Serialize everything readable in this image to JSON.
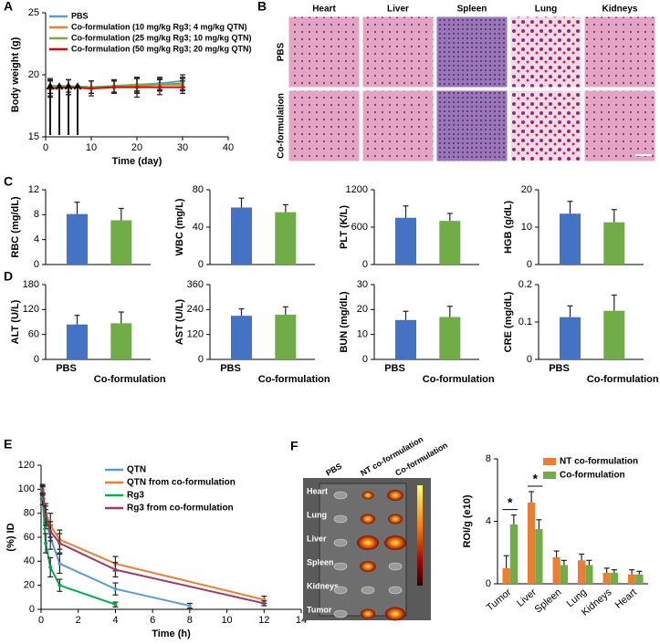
{
  "chart_data": [
    {
      "panel": "A",
      "type": "line",
      "xlabel": "Time (day)",
      "ylabel": "Body weight (g)",
      "xlim": [
        0,
        40
      ],
      "xticks": [
        0,
        10,
        20,
        30,
        40
      ],
      "ylim": [
        15,
        25
      ],
      "yticks": [
        15,
        20,
        25
      ],
      "x": [
        1,
        5,
        10,
        15,
        20,
        25,
        30
      ],
      "arrows_x": [
        1,
        3,
        5,
        7
      ],
      "series": [
        {
          "name": "PBS",
          "color": "#5b9bd5",
          "values": [
            19.0,
            19.1,
            19.0,
            19.1,
            19.2,
            19.3,
            19.5
          ],
          "errors": [
            0.5,
            0.5,
            0.5,
            0.5,
            0.5,
            0.5,
            0.5
          ]
        },
        {
          "name": "Co-formulation (10 mg/kg Rg3; 4 mg/kg QTN)",
          "color": "#ed7d31",
          "values": [
            18.9,
            19.0,
            19.0,
            19.0,
            19.1,
            19.2,
            19.2
          ],
          "errors": [
            0.6,
            0.6,
            0.5,
            0.5,
            0.6,
            0.5,
            0.5
          ]
        },
        {
          "name": "Co-formulation (25 mg/kg Rg3; 10 mg/kg QTN)",
          "color": "#70ad47",
          "values": [
            19.1,
            19.1,
            19.0,
            19.1,
            19.2,
            19.2,
            19.3
          ],
          "errors": [
            0.6,
            0.5,
            0.5,
            0.5,
            0.6,
            0.5,
            0.5
          ]
        },
        {
          "name": "Co-formulation (50 mg/kg Rg3; 20 mg/kg QTN)",
          "color": "#e00000",
          "values": [
            18.9,
            19.0,
            18.9,
            19.0,
            19.0,
            19.0,
            19.0
          ],
          "errors": [
            0.7,
            0.6,
            0.6,
            0.5,
            0.8,
            0.6,
            0.5
          ]
        }
      ]
    },
    {
      "panel": "C",
      "type": "bar",
      "ylabel": "RBC (mg/dL)",
      "ylim": [
        0,
        12
      ],
      "yticks": [
        0,
        4,
        8,
        12
      ],
      "categories": [
        null,
        null
      ],
      "values": [
        8.1,
        7.1
      ],
      "errors": [
        1.9,
        1.9
      ],
      "colors": [
        "#4472c4",
        "#70ad47"
      ]
    },
    {
      "type": "bar",
      "ylabel": "WBC (mg/L)",
      "ylim": [
        0,
        80
      ],
      "yticks": [
        0,
        40,
        80
      ],
      "categories": [
        null,
        null
      ],
      "values": [
        61,
        56
      ],
      "errors": [
        10,
        8
      ],
      "colors": [
        "#4472c4",
        "#70ad47"
      ]
    },
    {
      "type": "bar",
      "ylabel": "PLT (K/L)",
      "ylim": [
        0,
        1200
      ],
      "yticks": [
        0,
        600,
        1200
      ],
      "categories": [
        null,
        null
      ],
      "values": [
        750,
        700
      ],
      "errors": [
        190,
        120
      ],
      "colors": [
        "#4472c4",
        "#70ad47"
      ]
    },
    {
      "type": "bar",
      "ylabel": "HGB (g/dL)",
      "ylim": [
        0,
        20
      ],
      "yticks": [
        0,
        10,
        20
      ],
      "categories": [
        null,
        null
      ],
      "values": [
        13.6,
        11.3
      ],
      "errors": [
        3.3,
        3.4
      ],
      "colors": [
        "#4472c4",
        "#70ad47"
      ]
    },
    {
      "panel": "D",
      "type": "bar",
      "ylabel": "ALT (U/L)",
      "ylim": [
        0,
        180
      ],
      "yticks": [
        0,
        60,
        120,
        180
      ],
      "categories": [
        "PBS",
        "Co-formulation"
      ],
      "values": [
        84,
        87
      ],
      "errors": [
        22,
        27
      ],
      "colors": [
        "#4472c4",
        "#70ad47"
      ]
    },
    {
      "type": "bar",
      "ylabel": "AST (U/L)",
      "ylim": [
        0,
        360
      ],
      "yticks": [
        0,
        120,
        240,
        360
      ],
      "categories": [
        "PBS",
        "Co-formulation"
      ],
      "values": [
        210,
        215
      ],
      "errors": [
        33,
        38
      ],
      "colors": [
        "#4472c4",
        "#70ad47"
      ]
    },
    {
      "type": "bar",
      "ylabel": "BUN (mg/dL)",
      "ylim": [
        0,
        30
      ],
      "yticks": [
        0,
        10,
        20,
        30
      ],
      "categories": [
        "PBS",
        "Co-formulation"
      ],
      "values": [
        15.8,
        17
      ],
      "errors": [
        3.5,
        4.3
      ],
      "colors": [
        "#4472c4",
        "#70ad47"
      ]
    },
    {
      "type": "bar",
      "ylabel": "CRE (mg/dL)",
      "ylim": [
        0,
        0.2
      ],
      "yticks": [
        0,
        0.1,
        0.2
      ],
      "categories": [
        "PBS",
        "Co-formulation"
      ],
      "values": [
        0.113,
        0.13
      ],
      "errors": [
        0.03,
        0.042
      ],
      "colors": [
        "#4472c4",
        "#70ad47"
      ]
    },
    {
      "panel": "E",
      "type": "line",
      "xlabel": "Time (h)",
      "ylabel": "(%) ID",
      "xlim": [
        0,
        14
      ],
      "xticks": [
        0,
        2,
        4,
        6,
        8,
        10,
        12,
        14
      ],
      "ylim": [
        0,
        120
      ],
      "yticks": [
        0,
        20,
        40,
        60,
        80,
        100,
        120
      ],
      "series": [
        {
          "name": "QTN",
          "color": "#5b9bd5",
          "x": [
            0.083,
            0.25,
            0.5,
            1,
            4,
            8
          ],
          "values": [
            97,
            75,
            60,
            38,
            17,
            3
          ],
          "errors": [
            5,
            8,
            10,
            8,
            5,
            2
          ]
        },
        {
          "name": "QTN from co-formulation",
          "color": "#ed7d31",
          "x": [
            0.083,
            0.25,
            0.5,
            1,
            4,
            12
          ],
          "values": [
            100,
            80,
            70,
            58,
            38,
            8
          ],
          "errors": [
            4,
            8,
            10,
            8,
            6,
            3
          ]
        },
        {
          "name": "Rg3",
          "color": "#00b050",
          "x": [
            0.083,
            0.25,
            0.5,
            1,
            4
          ],
          "values": [
            92,
            55,
            35,
            20,
            4
          ],
          "errors": [
            5,
            8,
            8,
            5,
            2
          ]
        },
        {
          "name": "Rg3 from co-formulation",
          "color": "#9e3a6a",
          "x": [
            0.083,
            0.25,
            0.5,
            1,
            4,
            12
          ],
          "values": [
            99,
            78,
            65,
            55,
            33,
            5
          ],
          "errors": [
            4,
            8,
            8,
            8,
            6,
            2
          ]
        }
      ]
    },
    {
      "panel": "F",
      "type": "bar",
      "ylabel": "ROI/g (e10)",
      "ylim": [
        0,
        8
      ],
      "yticks": [
        0,
        4,
        8
      ],
      "categories": [
        "Tumor",
        "Liver",
        "Spleen",
        "Lung",
        "Kidneys",
        "Heart"
      ],
      "annotations": [
        "*",
        "*"
      ],
      "series": [
        {
          "name": "NT co-formulation",
          "color": "#ed7d31",
          "values": [
            1.0,
            5.2,
            1.7,
            1.5,
            0.7,
            0.6
          ],
          "errors": [
            0.8,
            0.7,
            0.4,
            0.4,
            0.3,
            0.3
          ]
        },
        {
          "name": "Co-formulation",
          "color": "#70ad47",
          "values": [
            3.8,
            3.5,
            1.2,
            1.2,
            0.7,
            0.6
          ],
          "errors": [
            0.6,
            0.6,
            0.3,
            0.3,
            0.2,
            0.2
          ]
        }
      ]
    }
  ],
  "histology": {
    "panel": "B",
    "columns": [
      "Heart",
      "Liver",
      "Spleen",
      "Lung",
      "Kidneys"
    ],
    "rows": [
      "PBS",
      "Co-formulation"
    ]
  },
  "imaging": {
    "columns": [
      "PBS",
      "NT co-formulation",
      "Co-formulation"
    ],
    "organs": [
      "Heart",
      "Lung",
      "Liver",
      "Spleen",
      "Kidneys",
      "Tumor"
    ]
  }
}
